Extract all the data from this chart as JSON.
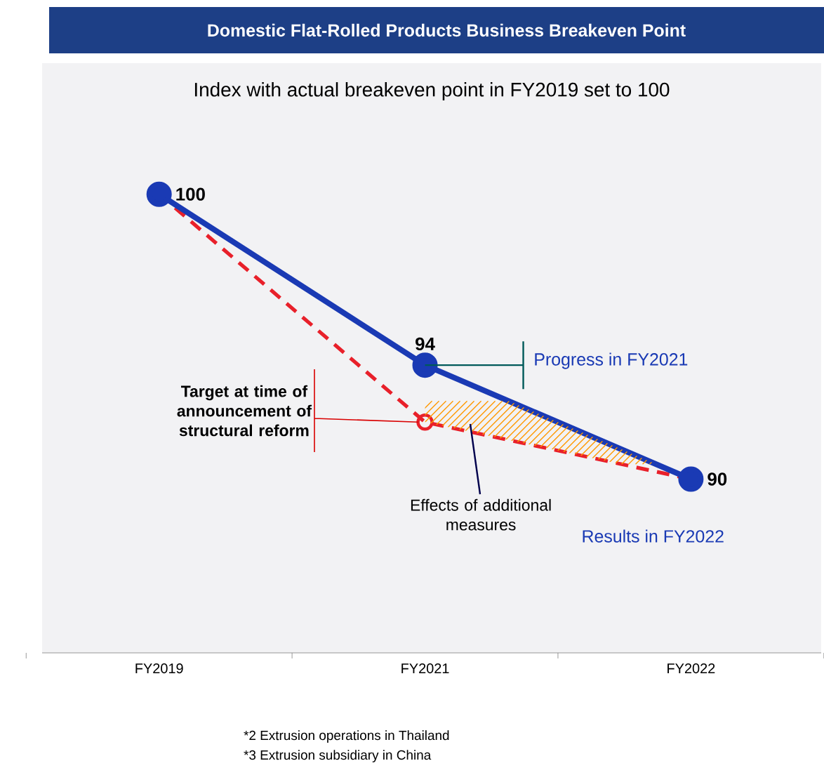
{
  "chart_data": {
    "type": "line",
    "title": "Domestic Flat-Rolled Products Business Breakeven Point",
    "subtitle": "Index with actual breakeven point in FY2019 set to 100",
    "categories": [
      "FY2019",
      "FY2021",
      "FY2022"
    ],
    "series": [
      {
        "color": "#e8202a",
        "values": [
          100,
          92,
          90
        ],
        "marker": "circle",
        "line_style": "dashed"
      },
      {
        "color": "#1a3ab4",
        "values": [
          100,
          94,
          90
        ],
        "marker": "circle",
        "line_style": "solid",
        "value_labels": [
          "100",
          "94",
          "90"
        ]
      }
    ],
    "ylim": [
      83.9,
      104.6
    ],
    "tick_labels": "x",
    "annotations": [
      "Target at time of announcement of structural reform",
      "Progress in FY2021",
      "Effects of additional measures",
      "Results in FY2022",
      "*2 Extrusion operations in Thailand",
      "*3 Extrusion subsidiary in China"
    ]
  }
}
